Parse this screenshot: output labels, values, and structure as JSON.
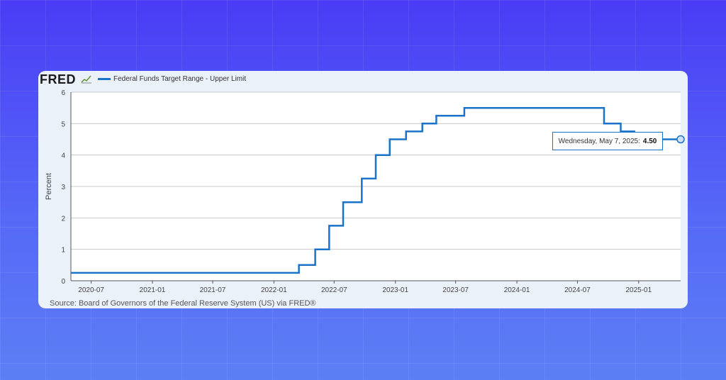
{
  "header": {
    "logo_text": "FRED"
  },
  "chart_data": {
    "type": "line",
    "step": true,
    "title": "",
    "series": [
      {
        "name": "Federal Funds Target Range - Upper Limit",
        "color": "#1a73c9",
        "points": [
          [
            "2020-05-01",
            0.25
          ],
          [
            "2022-03-17",
            0.25
          ],
          [
            "2022-03-17",
            0.5
          ],
          [
            "2022-05-05",
            0.5
          ],
          [
            "2022-05-05",
            1.0
          ],
          [
            "2022-06-16",
            1.0
          ],
          [
            "2022-06-16",
            1.75
          ],
          [
            "2022-07-28",
            1.75
          ],
          [
            "2022-07-28",
            2.5
          ],
          [
            "2022-09-22",
            2.5
          ],
          [
            "2022-09-22",
            3.25
          ],
          [
            "2022-11-03",
            3.25
          ],
          [
            "2022-11-03",
            4.0
          ],
          [
            "2022-12-15",
            4.0
          ],
          [
            "2022-12-15",
            4.5
          ],
          [
            "2023-02-02",
            4.5
          ],
          [
            "2023-02-02",
            4.75
          ],
          [
            "2023-03-23",
            4.75
          ],
          [
            "2023-03-23",
            5.0
          ],
          [
            "2023-05-04",
            5.0
          ],
          [
            "2023-05-04",
            5.25
          ],
          [
            "2023-07-27",
            5.25
          ],
          [
            "2023-07-27",
            5.5
          ],
          [
            "2024-09-19",
            5.5
          ],
          [
            "2024-09-19",
            5.0
          ],
          [
            "2024-11-08",
            5.0
          ],
          [
            "2024-11-08",
            4.75
          ],
          [
            "2024-12-19",
            4.75
          ],
          [
            "2024-12-19",
            4.5
          ],
          [
            "2025-05-07",
            4.5
          ]
        ]
      }
    ],
    "xlabel": "",
    "ylabel": "Percent",
    "x_range": [
      "2020-05-01",
      "2025-05-07"
    ],
    "ylim": [
      0,
      6
    ],
    "y_ticks": [
      0,
      1,
      2,
      3,
      4,
      5,
      6
    ],
    "x_ticks": [
      "2020-07",
      "2021-01",
      "2021-07",
      "2022-01",
      "2022-07",
      "2023-01",
      "2023-07",
      "2024-01",
      "2024-07",
      "2025-01"
    ],
    "grid": true,
    "legend": "top-left",
    "tooltip": {
      "label": "Wednesday, May 7, 2025:",
      "value": "4.50"
    },
    "source": "Source: Board of Governors of the Federal Reserve System (US) via FRED®"
  }
}
